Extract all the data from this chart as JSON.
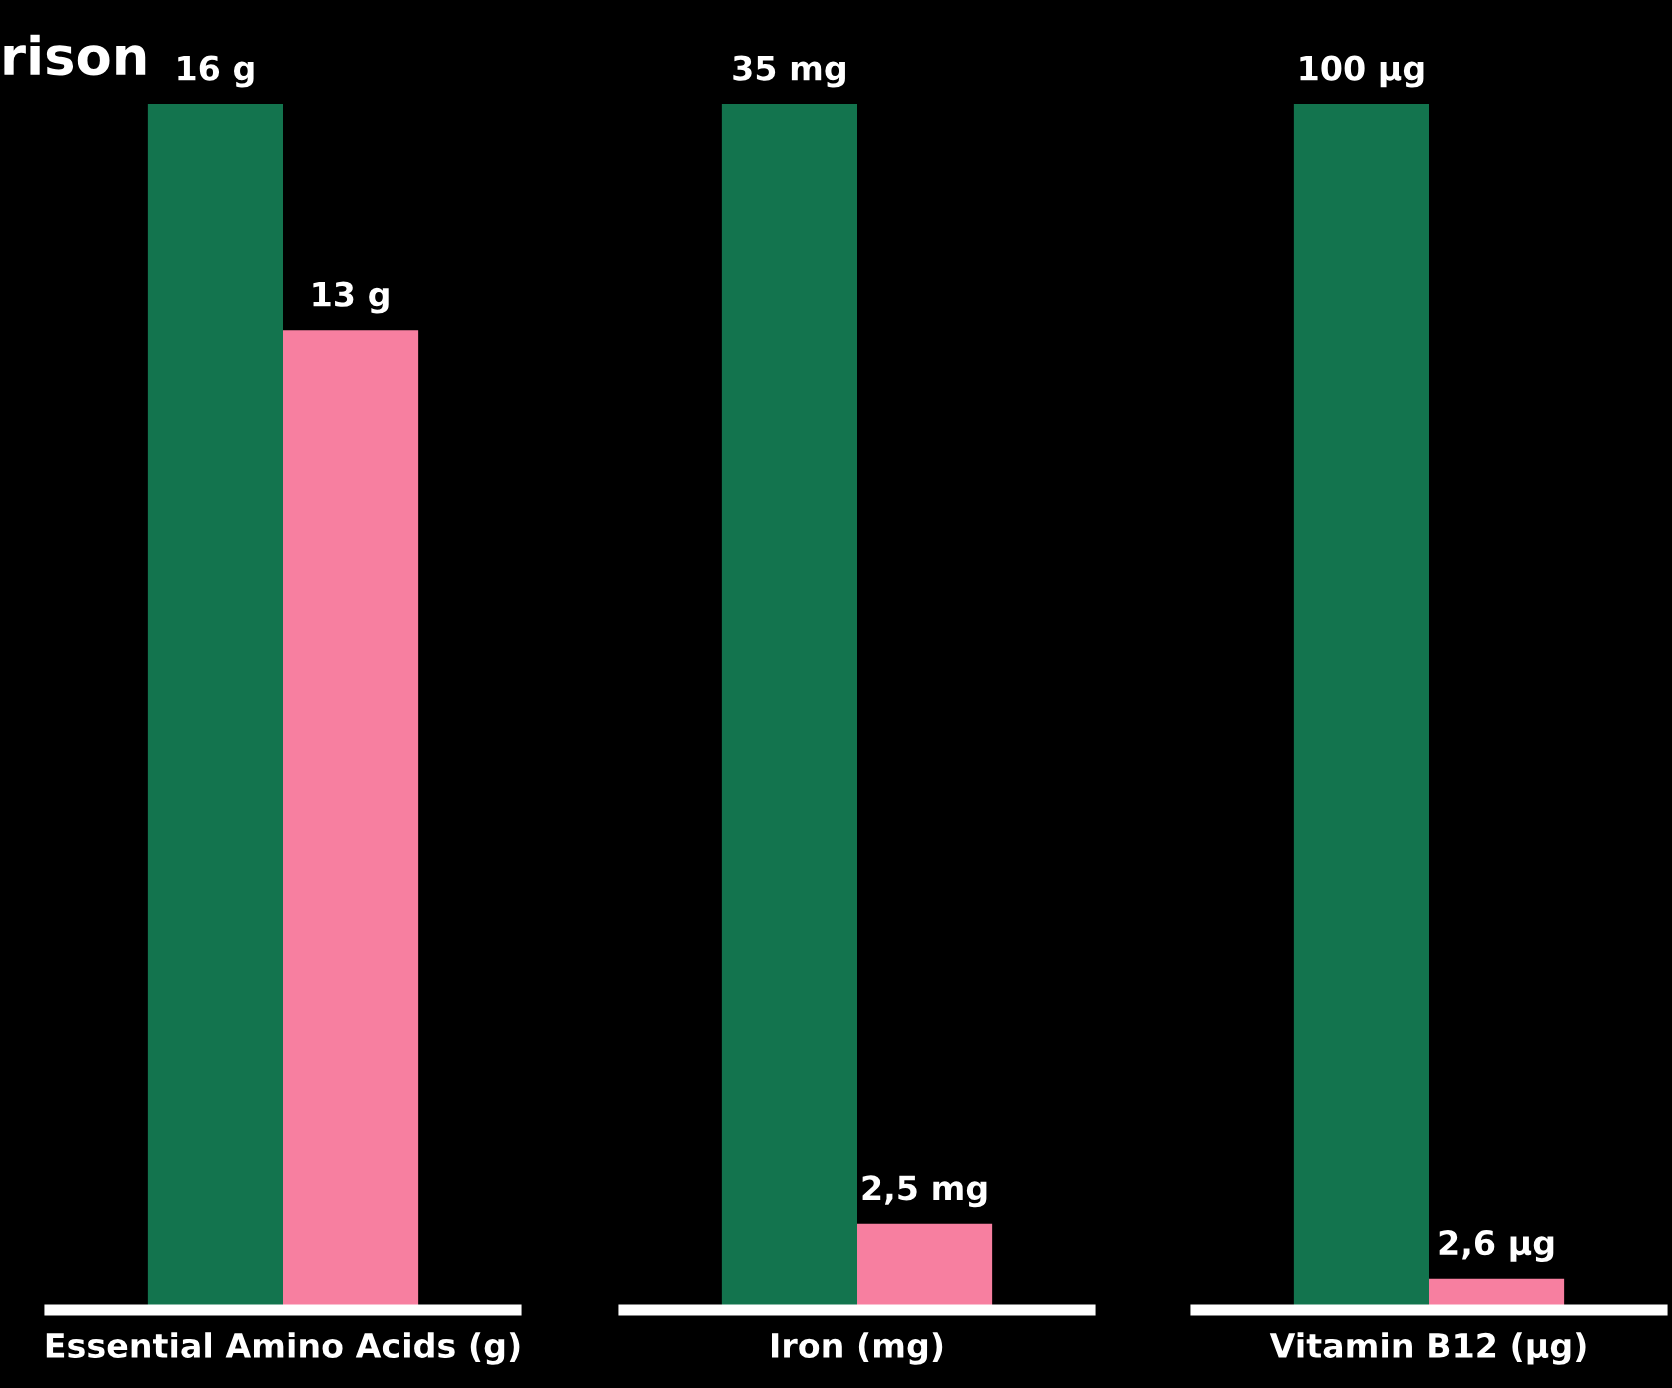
{
  "chart_data": [
    {
      "type": "bar",
      "title": "rison",
      "categories": [
        "Essential Amino Acids (g)"
      ],
      "series": [
        {
          "color": "#13744e",
          "values": [
            16
          ],
          "value_labels": [
            "16 g"
          ]
        },
        {
          "color": "#f77fa0",
          "values": [
            13
          ],
          "value_labels": [
            "13 g"
          ]
        }
      ]
    },
    {
      "type": "bar",
      "categories": [
        "Iron (mg)"
      ],
      "series": [
        {
          "color": "#13744e",
          "values": [
            35
          ],
          "value_labels": [
            "35 mg"
          ]
        },
        {
          "color": "#f77fa0",
          "values": [
            2.5
          ],
          "value_labels": [
            "2,5 mg"
          ]
        }
      ]
    },
    {
      "type": "bar",
      "categories": [
        "Vitamin B12 (µg)"
      ],
      "series": [
        {
          "color": "#13744e",
          "values": [
            100
          ],
          "value_labels": [
            "100 µg"
          ]
        },
        {
          "color": "#f77fa0",
          "values": [
            2.6
          ],
          "value_labels": [
            "2,6 µg"
          ]
        }
      ]
    }
  ]
}
